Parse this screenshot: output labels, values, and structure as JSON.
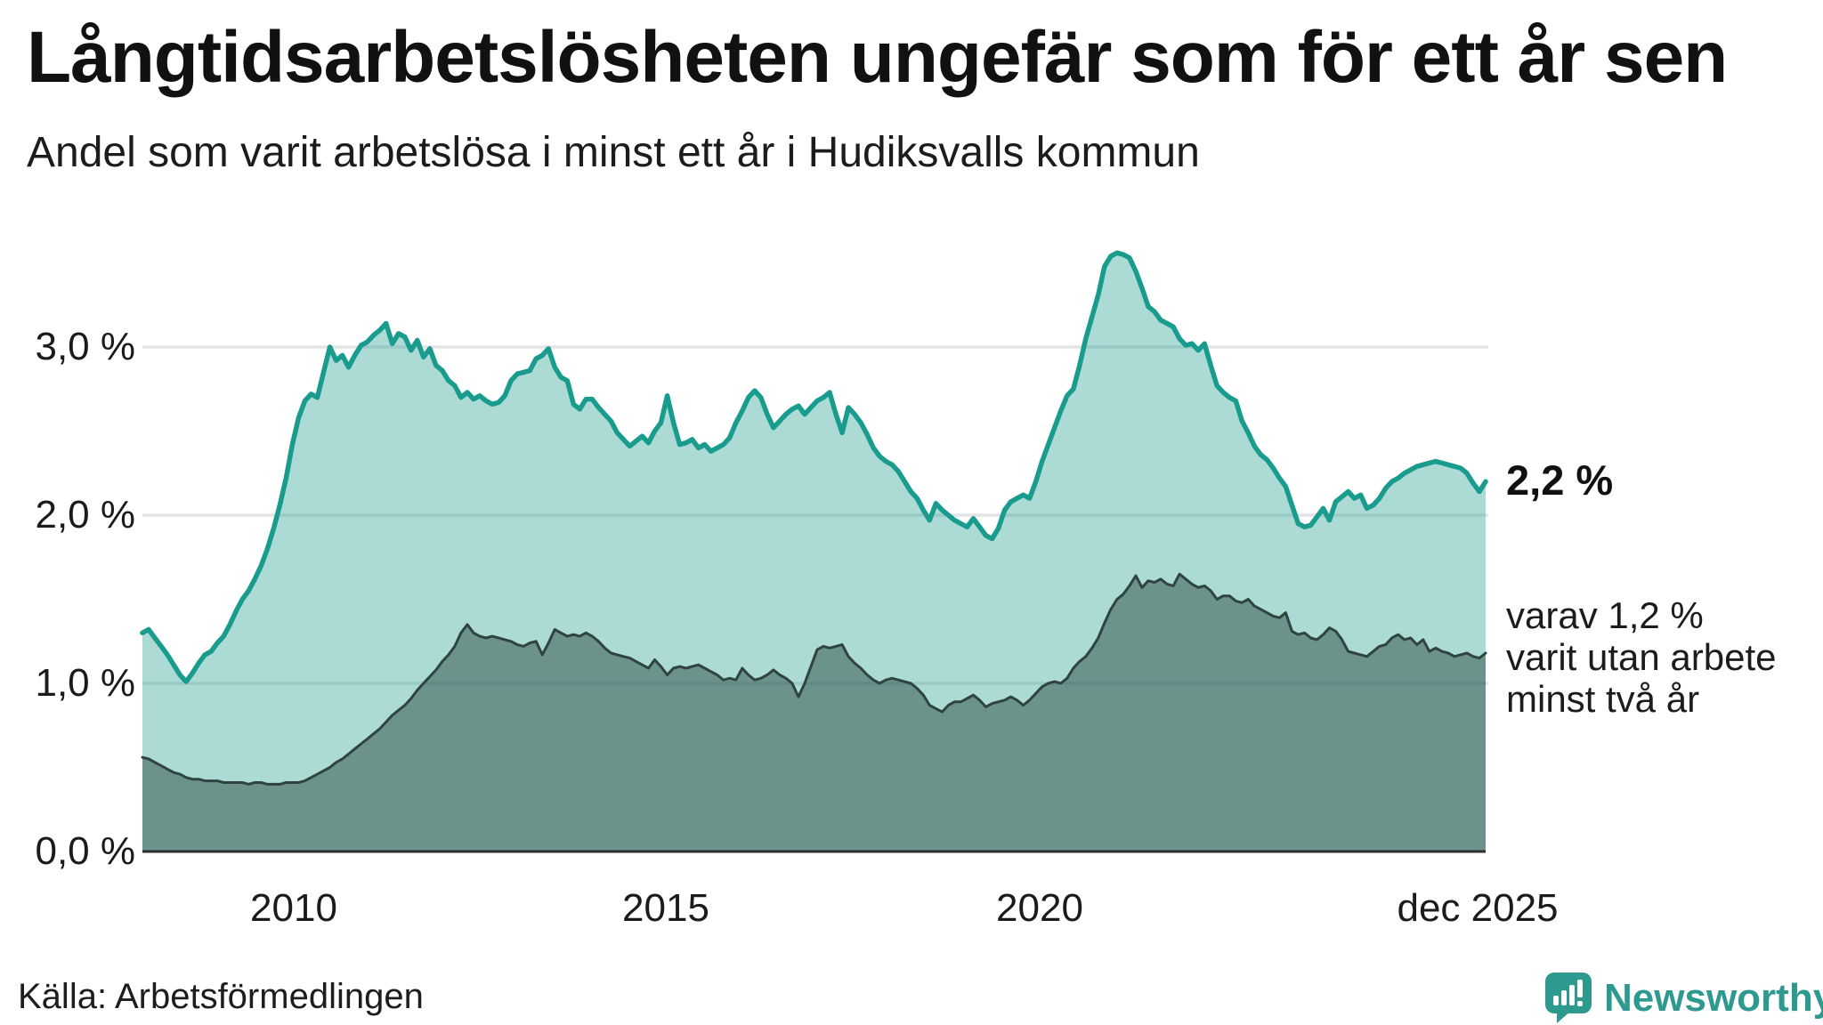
{
  "header": {
    "title": "Långtidsarbetslösheten ungefär som för ett år sen",
    "subtitle": "Andel som varit arbetslösa i minst ett år i Hudiksvalls kommun"
  },
  "footer": {
    "source": "Källa: Arbetsförmedlingen",
    "brand": "Newsworthy",
    "brand_icon": "newsworthy-speech-bubble-bar-chart-icon",
    "brand_color": "#2e998e"
  },
  "colors": {
    "line_primary": "#199c8d",
    "fill_primary": "rgba(26,156,141,0.36)",
    "line_secondary": "#2f443f",
    "fill_secondary": "rgba(30,58,52,0.45)",
    "gridline": "#e3e5e5",
    "baseline": "#2b2f2e",
    "text": "#1a1a1a"
  },
  "chart_data": {
    "type": "area",
    "title": "Långtidsarbetslösheten ungefär som för ett år sen",
    "subtitle": "Andel som varit arbetslösa i minst ett år i Hudiksvalls kommun",
    "x_start": "2008-01",
    "x_end": "2025-12",
    "frequency": "monthly",
    "ylim": [
      0,
      3.7
    ],
    "grid": "horizontal-only",
    "legend_position": "right-edge-annotations",
    "y_axis": {
      "labels": [
        "3,0 %",
        "2,0 %",
        "1,0 %",
        "0,0 %"
      ],
      "values": [
        3.0,
        2.0,
        1.0,
        0.0
      ]
    },
    "x_axis": {
      "labels": [
        "2010",
        "2015",
        "2020",
        "dec 2025"
      ],
      "month_index": [
        24,
        84,
        144,
        215
      ]
    },
    "end_labels": {
      "primary_value": "2,2 %",
      "secondary_note_line1": "varav 1,2 %",
      "secondary_note_line2": "varit utan arbete",
      "secondary_note_line3": "minst två år"
    },
    "series": [
      {
        "name": "Andel arbetslösa minst ett år",
        "end_value_pct": 2.2,
        "values": [
          1.3,
          1.32,
          1.27,
          1.22,
          1.17,
          1.11,
          1.05,
          1.01,
          1.06,
          1.12,
          1.17,
          1.19,
          1.24,
          1.28,
          1.35,
          1.43,
          1.5,
          1.55,
          1.62,
          1.7,
          1.8,
          1.92,
          2.06,
          2.22,
          2.42,
          2.58,
          2.68,
          2.72,
          2.7,
          2.85,
          3.0,
          2.92,
          2.95,
          2.88,
          2.95,
          3.01,
          3.03,
          3.07,
          3.1,
          3.14,
          3.02,
          3.08,
          3.06,
          2.98,
          3.04,
          2.94,
          2.99,
          2.89,
          2.86,
          2.8,
          2.77,
          2.7,
          2.73,
          2.69,
          2.71,
          2.68,
          2.66,
          2.67,
          2.71,
          2.8,
          2.84,
          2.85,
          2.86,
          2.93,
          2.95,
          2.99,
          2.88,
          2.82,
          2.8,
          2.66,
          2.63,
          2.69,
          2.69,
          2.64,
          2.6,
          2.56,
          2.49,
          2.45,
          2.41,
          2.44,
          2.47,
          2.43,
          2.5,
          2.55,
          2.71,
          2.55,
          2.42,
          2.43,
          2.45,
          2.4,
          2.42,
          2.38,
          2.4,
          2.42,
          2.46,
          2.55,
          2.62,
          2.7,
          2.74,
          2.7,
          2.6,
          2.52,
          2.56,
          2.6,
          2.63,
          2.65,
          2.6,
          2.64,
          2.68,
          2.7,
          2.73,
          2.6,
          2.49,
          2.64,
          2.6,
          2.55,
          2.48,
          2.4,
          2.35,
          2.32,
          2.3,
          2.26,
          2.2,
          2.14,
          2.1,
          2.03,
          1.97,
          2.07,
          2.03,
          2.0,
          1.97,
          1.95,
          1.93,
          1.98,
          1.93,
          1.88,
          1.86,
          1.92,
          2.03,
          2.08,
          2.1,
          2.12,
          2.1,
          2.2,
          2.32,
          2.42,
          2.52,
          2.62,
          2.71,
          2.75,
          2.89,
          3.05,
          3.18,
          3.31,
          3.48,
          3.54,
          3.56,
          3.55,
          3.53,
          3.45,
          3.35,
          3.24,
          3.21,
          3.16,
          3.14,
          3.12,
          3.05,
          3.01,
          3.02,
          2.98,
          3.02,
          2.89,
          2.77,
          2.73,
          2.7,
          2.68,
          2.56,
          2.49,
          2.41,
          2.36,
          2.33,
          2.28,
          2.22,
          2.17,
          2.06,
          1.95,
          1.93,
          1.94,
          1.99,
          2.04,
          1.97,
          2.08,
          2.11,
          2.14,
          2.1,
          2.12,
          2.04,
          2.06,
          2.1,
          2.16,
          2.2,
          2.22,
          2.25,
          2.27,
          2.29,
          2.3,
          2.31,
          2.32,
          2.31,
          2.3,
          2.29,
          2.28,
          2.25,
          2.19,
          2.14,
          2.2
        ]
      },
      {
        "name": "varav utan arbete minst två år",
        "end_value_pct": 1.2,
        "values": [
          0.56,
          0.55,
          0.53,
          0.51,
          0.49,
          0.47,
          0.46,
          0.44,
          0.43,
          0.43,
          0.42,
          0.42,
          0.42,
          0.41,
          0.41,
          0.41,
          0.41,
          0.4,
          0.41,
          0.41,
          0.4,
          0.4,
          0.4,
          0.41,
          0.41,
          0.41,
          0.42,
          0.44,
          0.46,
          0.48,
          0.5,
          0.53,
          0.55,
          0.58,
          0.61,
          0.64,
          0.67,
          0.7,
          0.73,
          0.77,
          0.81,
          0.84,
          0.87,
          0.91,
          0.96,
          1.0,
          1.04,
          1.08,
          1.13,
          1.17,
          1.22,
          1.3,
          1.35,
          1.3,
          1.28,
          1.27,
          1.28,
          1.27,
          1.26,
          1.25,
          1.23,
          1.22,
          1.24,
          1.25,
          1.17,
          1.24,
          1.32,
          1.3,
          1.28,
          1.29,
          1.28,
          1.3,
          1.28,
          1.25,
          1.21,
          1.18,
          1.17,
          1.16,
          1.15,
          1.13,
          1.11,
          1.09,
          1.14,
          1.1,
          1.05,
          1.09,
          1.1,
          1.09,
          1.1,
          1.11,
          1.09,
          1.07,
          1.05,
          1.02,
          1.03,
          1.02,
          1.09,
          1.05,
          1.02,
          1.03,
          1.05,
          1.08,
          1.05,
          1.03,
          1.0,
          0.92,
          1.0,
          1.1,
          1.2,
          1.22,
          1.21,
          1.22,
          1.23,
          1.16,
          1.12,
          1.09,
          1.05,
          1.02,
          1.0,
          1.02,
          1.03,
          1.02,
          1.01,
          1.0,
          0.97,
          0.93,
          0.87,
          0.85,
          0.83,
          0.87,
          0.89,
          0.89,
          0.91,
          0.93,
          0.9,
          0.86,
          0.88,
          0.89,
          0.9,
          0.92,
          0.9,
          0.87,
          0.9,
          0.94,
          0.98,
          1.0,
          1.01,
          1.0,
          1.03,
          1.09,
          1.13,
          1.16,
          1.21,
          1.27,
          1.36,
          1.44,
          1.5,
          1.53,
          1.58,
          1.64,
          1.57,
          1.61,
          1.6,
          1.62,
          1.59,
          1.58,
          1.65,
          1.62,
          1.59,
          1.57,
          1.58,
          1.55,
          1.5,
          1.52,
          1.52,
          1.49,
          1.48,
          1.5,
          1.46,
          1.44,
          1.42,
          1.4,
          1.39,
          1.42,
          1.31,
          1.29,
          1.3,
          1.27,
          1.26,
          1.29,
          1.33,
          1.31,
          1.26,
          1.19,
          1.18,
          1.17,
          1.16,
          1.19,
          1.22,
          1.23,
          1.27,
          1.29,
          1.26,
          1.27,
          1.23,
          1.26,
          1.19,
          1.21,
          1.19,
          1.18,
          1.16,
          1.17,
          1.18,
          1.16,
          1.15,
          1.18
        ]
      }
    ]
  }
}
